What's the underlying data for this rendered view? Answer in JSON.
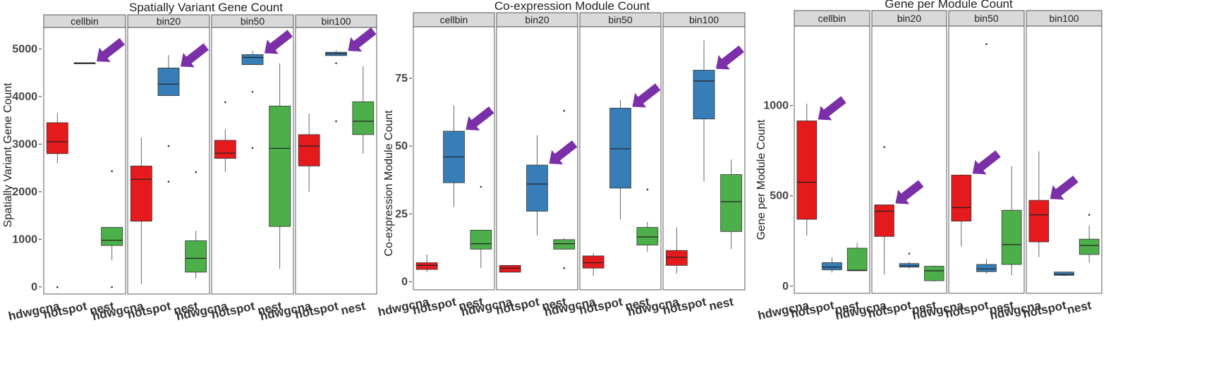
{
  "chart_data": [
    {
      "type": "boxplot",
      "title": "Spatially Variant Gene Count",
      "ylabel": "Spatially Variant Gene Count",
      "xlabel": "",
      "ylim": [
        -150,
        5450
      ],
      "yticks": [
        0,
        1000,
        2000,
        3000,
        4000,
        5000
      ],
      "facets": [
        "cellbin",
        "bin20",
        "bin50",
        "bin100"
      ],
      "categories": [
        "hdwgcna",
        "hotspot",
        "nest"
      ],
      "arrow_target": "hotspot",
      "boxes": [
        [
          {
            "q1": 2800,
            "median": 3050,
            "q3": 3450,
            "whisker_low": 2600,
            "whisker_high": 3650,
            "outliers": [
              -5
            ]
          },
          {
            "q1": 4690,
            "median": 4700,
            "q3": 4710,
            "whisker_low": 4690,
            "whisker_high": 4710,
            "outliers": []
          },
          {
            "q1": 870,
            "median": 980,
            "q3": 1250,
            "whisker_low": 560,
            "whisker_high": 1250,
            "outliers": [
              2430,
              -5
            ]
          }
        ],
        [
          {
            "q1": 1380,
            "median": 2260,
            "q3": 2540,
            "whisker_low": 60,
            "whisker_high": 3140,
            "outliers": []
          },
          {
            "q1": 4020,
            "median": 4260,
            "q3": 4600,
            "whisker_low": 4020,
            "whisker_high": 4870,
            "outliers": [
              2960,
              2210
            ]
          },
          {
            "q1": 310,
            "median": 600,
            "q3": 970,
            "whisker_low": 180,
            "whisker_high": 1180,
            "outliers": [
              2410
            ]
          }
        ],
        [
          {
            "q1": 2700,
            "median": 2810,
            "q3": 3080,
            "whisker_low": 2410,
            "whisker_high": 3310,
            "outliers": [
              3880
            ]
          },
          {
            "q1": 4670,
            "median": 4820,
            "q3": 4880,
            "whisker_low": 4670,
            "whisker_high": 4960,
            "outliers": [
              4100,
              2920
            ]
          },
          {
            "q1": 1270,
            "median": 2910,
            "q3": 3800,
            "whisker_low": 380,
            "whisker_high": 4700,
            "outliers": []
          }
        ],
        [
          {
            "q1": 2540,
            "median": 2960,
            "q3": 3200,
            "whisker_low": 2000,
            "whisker_high": 3640,
            "outliers": []
          },
          {
            "q1": 4860,
            "median": 4900,
            "q3": 4930,
            "whisker_low": 4860,
            "whisker_high": 4970,
            "outliers": [
              4700,
              3480
            ]
          },
          {
            "q1": 3200,
            "median": 3480,
            "q3": 3890,
            "whisker_low": 2800,
            "whisker_high": 4640,
            "outliers": []
          }
        ]
      ]
    },
    {
      "type": "boxplot",
      "title": "Co-expression Module Count",
      "ylabel": "Co-expression Module Count",
      "xlabel": "",
      "ylim": [
        -3,
        94
      ],
      "yticks": [
        0,
        25,
        50,
        75
      ],
      "facets": [
        "cellbin",
        "bin20",
        "bin50",
        "bin100"
      ],
      "categories": [
        "hdwgcna",
        "hotspot",
        "nest"
      ],
      "arrow_target": "hotspot",
      "boxes": [
        [
          {
            "q1": 4.5,
            "median": 6,
            "q3": 7,
            "whisker_low": 3.5,
            "whisker_high": 10,
            "outliers": []
          },
          {
            "q1": 36.5,
            "median": 46,
            "q3": 55.5,
            "whisker_low": 27.5,
            "whisker_high": 65,
            "outliers": []
          },
          {
            "q1": 12,
            "median": 14,
            "q3": 19,
            "whisker_low": 5,
            "whisker_high": 19,
            "outliers": [
              35
            ]
          }
        ],
        [
          {
            "q1": 3.5,
            "median": 5,
            "q3": 6,
            "whisker_low": 3.5,
            "whisker_high": 6,
            "outliers": []
          },
          {
            "q1": 26,
            "median": 36,
            "q3": 43,
            "whisker_low": 17,
            "whisker_high": 54,
            "outliers": []
          },
          {
            "q1": 12,
            "median": 14,
            "q3": 15.5,
            "whisker_low": 12,
            "whisker_high": 16,
            "outliers": [
              63,
              5
            ]
          }
        ],
        [
          {
            "q1": 5,
            "median": 7,
            "q3": 9.5,
            "whisker_low": 2,
            "whisker_high": 10.5,
            "outliers": []
          },
          {
            "q1": 34.5,
            "median": 49,
            "q3": 64,
            "whisker_low": 23,
            "whisker_high": 67,
            "outliers": []
          },
          {
            "q1": 13.5,
            "median": 16.5,
            "q3": 20,
            "whisker_low": 11,
            "whisker_high": 22,
            "outliers": [
              34
            ]
          }
        ],
        [
          {
            "q1": 6,
            "median": 9,
            "q3": 11.5,
            "whisker_low": 3,
            "whisker_high": 20,
            "outliers": []
          },
          {
            "q1": 60,
            "median": 74,
            "q3": 78,
            "whisker_low": 37,
            "whisker_high": 89,
            "outliers": []
          },
          {
            "q1": 18.5,
            "median": 29.5,
            "q3": 39.5,
            "whisker_low": 12,
            "whisker_high": 45,
            "outliers": []
          }
        ]
      ]
    },
    {
      "type": "boxplot",
      "title": "Gene per Module Count",
      "ylabel": "Gene per Module Count",
      "xlabel": "",
      "ylim": [
        -40,
        1440
      ],
      "yticks": [
        0,
        500,
        1000
      ],
      "facets": [
        "cellbin",
        "bin20",
        "bin50",
        "bin100"
      ],
      "categories": [
        "hdwgcna",
        "hotspot",
        "nest"
      ],
      "arrow_target": "hdwgcna",
      "boxes": [
        [
          {
            "q1": 370,
            "median": 575,
            "q3": 915,
            "whisker_low": 280,
            "whisker_high": 1010,
            "outliers": []
          },
          {
            "q1": 90,
            "median": 105,
            "q3": 130,
            "whisker_low": 75,
            "whisker_high": 160,
            "outliers": []
          },
          {
            "q1": 85,
            "median": 88,
            "q3": 210,
            "whisker_low": 85,
            "whisker_high": 240,
            "outliers": []
          }
        ],
        [
          {
            "q1": 275,
            "median": 415,
            "q3": 450,
            "whisker_low": 65,
            "whisker_high": 450,
            "outliers": [
              770
            ]
          },
          {
            "q1": 105,
            "median": 112,
            "q3": 125,
            "whisker_low": 95,
            "whisker_high": 135,
            "outliers": [
              180
            ]
          },
          {
            "q1": 30,
            "median": 85,
            "q3": 110,
            "whisker_low": 25,
            "whisker_high": 115,
            "outliers": []
          }
        ],
        [
          {
            "q1": 360,
            "median": 435,
            "q3": 615,
            "whisker_low": 220,
            "whisker_high": 620,
            "outliers": []
          },
          {
            "q1": 80,
            "median": 95,
            "q3": 120,
            "whisker_low": 70,
            "whisker_high": 150,
            "outliers": [
              1340
            ]
          },
          {
            "q1": 120,
            "median": 230,
            "q3": 420,
            "whisker_low": 60,
            "whisker_high": 665,
            "outliers": []
          }
        ],
        [
          {
            "q1": 245,
            "median": 395,
            "q3": 475,
            "whisker_low": 160,
            "whisker_high": 745,
            "outliers": []
          },
          {
            "q1": 60,
            "median": 65,
            "q3": 78,
            "whisker_low": 55,
            "whisker_high": 80,
            "outliers": []
          },
          {
            "q1": 175,
            "median": 225,
            "q3": 260,
            "whisker_low": 130,
            "whisker_high": 335,
            "outliers": [
              395
            ]
          }
        ]
      ]
    }
  ],
  "colors": {
    "hdwgcna": "#e41a1c",
    "hotspot": "#377eb8",
    "nest": "#4daf4a",
    "arrow": "#7b2fa8",
    "strip": "#d9d9d9",
    "panel_border": "#333333"
  }
}
